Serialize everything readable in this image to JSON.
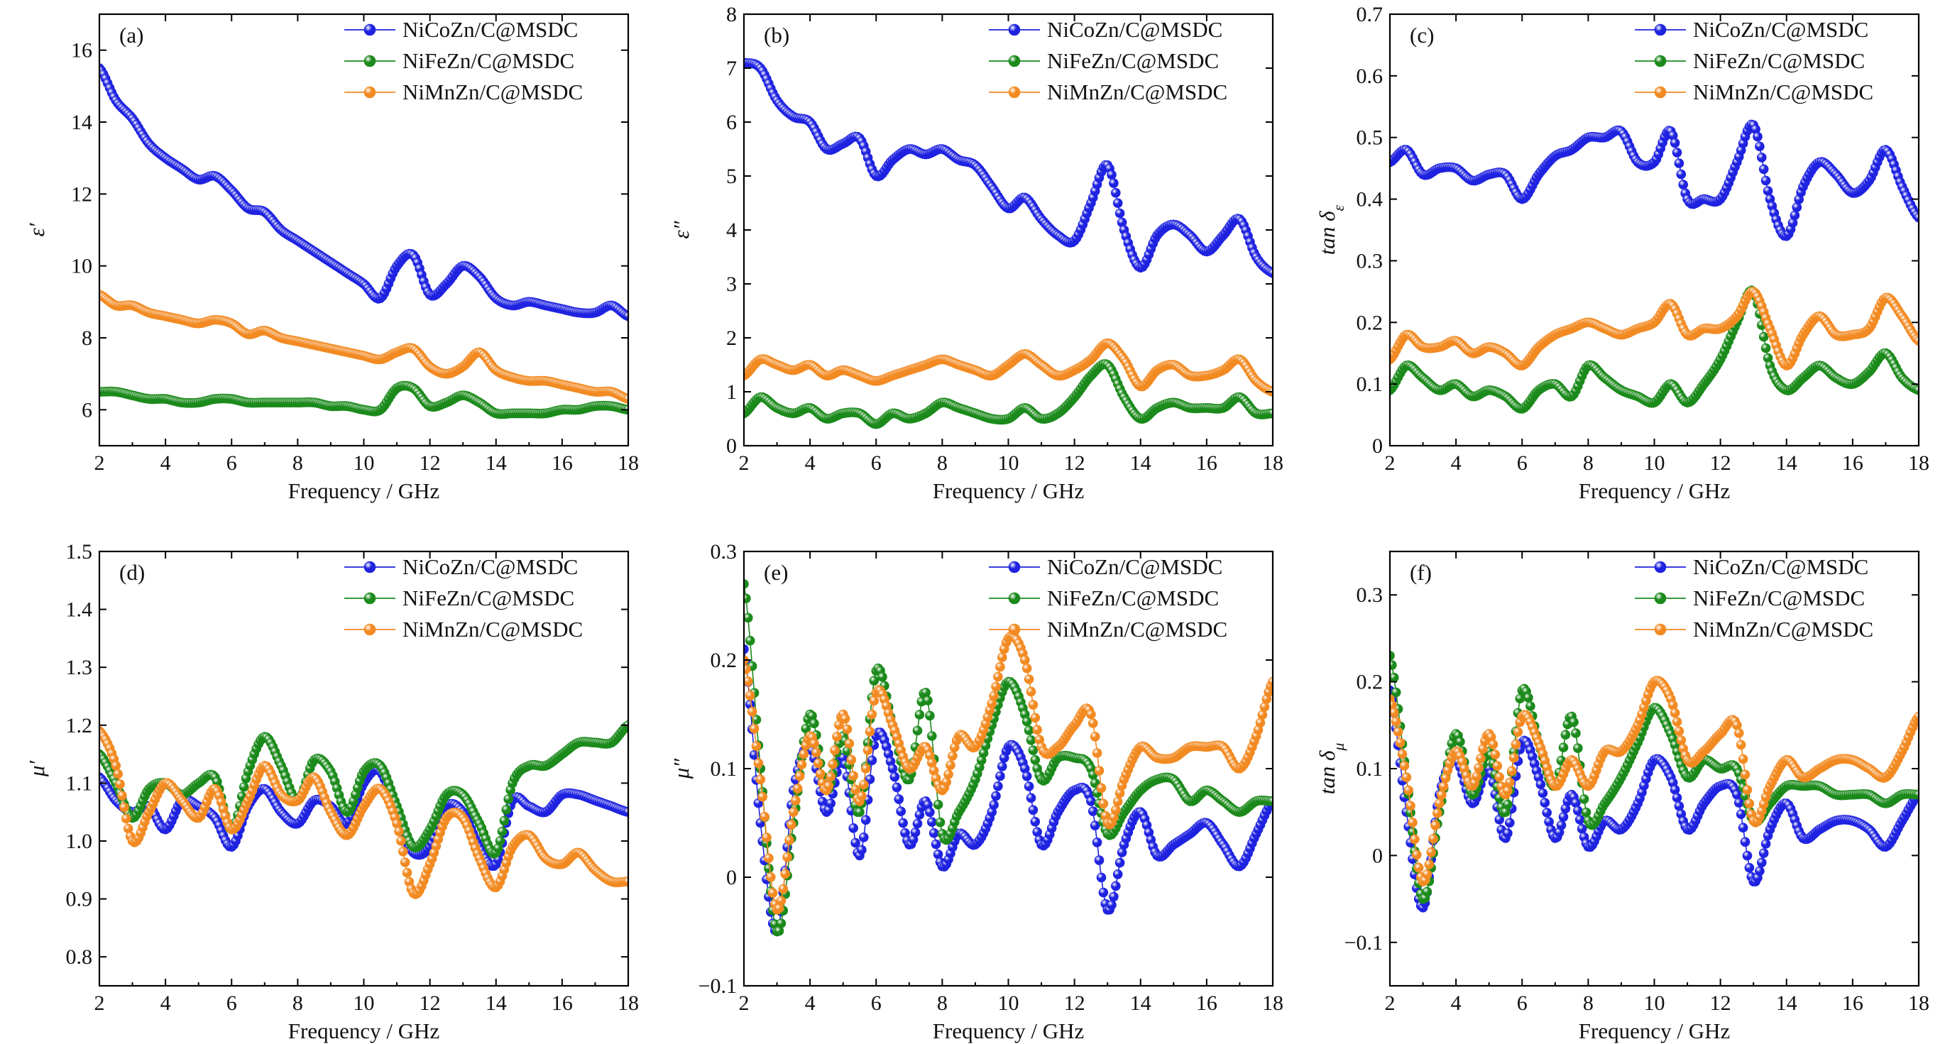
{
  "figure": {
    "series_names": [
      "NiCoZn/C@MSDC",
      "NiFeZn/C@MSDC",
      "NiMnZn/C@MSDC"
    ],
    "series_colors": [
      "#1f23e0",
      "#1b8a1b",
      "#f28a22"
    ],
    "marker_highlight": "#ffffff"
  },
  "chart_data": [
    {
      "id": "a",
      "type": "scatter",
      "label": "(a)",
      "xlabel": "Frequency / GHz",
      "ylabel": "ε′",
      "ylabel_sub": "",
      "xlim": [
        2,
        18
      ],
      "ylim": [
        5.0,
        17.0
      ],
      "xticks": [
        2,
        4,
        6,
        8,
        10,
        12,
        14,
        16,
        18
      ],
      "yticks": [
        6,
        8,
        10,
        12,
        14,
        16
      ],
      "yticklabels": [
        "6",
        "8",
        "10",
        "12",
        "14",
        "16"
      ],
      "legend": "top-right",
      "x": [
        2.0,
        2.5,
        3.0,
        3.5,
        4.0,
        4.5,
        5.0,
        5.5,
        6.0,
        6.5,
        7.0,
        7.5,
        8.0,
        8.5,
        9.0,
        9.5,
        10.0,
        10.5,
        11.0,
        11.5,
        12.0,
        12.5,
        13.0,
        13.5,
        14.0,
        14.5,
        15.0,
        15.5,
        16.0,
        16.5,
        17.0,
        17.5,
        18.0
      ],
      "series": [
        {
          "name": "NiCoZn/C@MSDC",
          "values": [
            15.5,
            14.6,
            14.1,
            13.4,
            13.0,
            12.7,
            12.4,
            12.5,
            12.1,
            11.6,
            11.5,
            11.0,
            10.7,
            10.4,
            10.1,
            9.8,
            9.5,
            9.1,
            10.0,
            10.3,
            9.2,
            9.5,
            10.0,
            9.7,
            9.1,
            8.9,
            9.0,
            8.9,
            8.8,
            8.7,
            8.7,
            8.9,
            8.6
          ]
        },
        {
          "name": "NiFeZn/C@MSDC",
          "values": [
            6.5,
            6.5,
            6.4,
            6.3,
            6.3,
            6.2,
            6.2,
            6.3,
            6.3,
            6.2,
            6.2,
            6.2,
            6.2,
            6.2,
            6.1,
            6.1,
            6.0,
            6.0,
            6.6,
            6.6,
            6.1,
            6.2,
            6.4,
            6.2,
            5.9,
            5.9,
            5.9,
            5.9,
            6.0,
            6.0,
            6.1,
            6.1,
            6.0
          ]
        },
        {
          "name": "NiMnZn/C@MSDC",
          "values": [
            9.2,
            8.9,
            8.9,
            8.7,
            8.6,
            8.5,
            8.4,
            8.5,
            8.4,
            8.1,
            8.2,
            8.0,
            7.9,
            7.8,
            7.7,
            7.6,
            7.5,
            7.4,
            7.6,
            7.7,
            7.2,
            7.0,
            7.2,
            7.6,
            7.1,
            6.9,
            6.8,
            6.8,
            6.7,
            6.6,
            6.5,
            6.5,
            6.3
          ]
        }
      ]
    },
    {
      "id": "b",
      "type": "scatter",
      "label": "(b)",
      "xlabel": "Frequency / GHz",
      "ylabel": "ε″",
      "ylabel_sub": "",
      "xlim": [
        2,
        18
      ],
      "ylim": [
        0,
        8
      ],
      "xticks": [
        2,
        4,
        6,
        8,
        10,
        12,
        14,
        16,
        18
      ],
      "yticks": [
        0,
        1,
        2,
        3,
        4,
        5,
        6,
        7,
        8
      ],
      "yticklabels": [
        "0",
        "1",
        "2",
        "3",
        "4",
        "5",
        "6",
        "7",
        "8"
      ],
      "legend": "top-right",
      "x": [
        2.0,
        2.5,
        3.0,
        3.5,
        4.0,
        4.5,
        5.0,
        5.5,
        6.0,
        6.5,
        7.0,
        7.5,
        8.0,
        8.5,
        9.0,
        9.5,
        10.0,
        10.5,
        11.0,
        11.5,
        12.0,
        12.5,
        13.0,
        13.5,
        14.0,
        14.5,
        15.0,
        15.5,
        16.0,
        16.5,
        17.0,
        17.5,
        18.0
      ],
      "series": [
        {
          "name": "NiCoZn/C@MSDC",
          "values": [
            7.1,
            7.0,
            6.4,
            6.1,
            6.0,
            5.5,
            5.6,
            5.7,
            5.0,
            5.3,
            5.5,
            5.4,
            5.5,
            5.3,
            5.2,
            4.8,
            4.4,
            4.6,
            4.2,
            3.9,
            3.8,
            4.5,
            5.2,
            4.0,
            3.3,
            3.9,
            4.1,
            3.9,
            3.6,
            3.9,
            4.2,
            3.5,
            3.2
          ]
        },
        {
          "name": "NiFeZn/C@MSDC",
          "values": [
            0.6,
            0.9,
            0.7,
            0.6,
            0.7,
            0.5,
            0.6,
            0.6,
            0.4,
            0.6,
            0.5,
            0.6,
            0.8,
            0.7,
            0.6,
            0.5,
            0.5,
            0.7,
            0.5,
            0.6,
            0.9,
            1.3,
            1.5,
            0.9,
            0.5,
            0.7,
            0.8,
            0.7,
            0.7,
            0.7,
            0.9,
            0.6,
            0.6
          ]
        },
        {
          "name": "NiMnZn/C@MSDC",
          "values": [
            1.3,
            1.6,
            1.5,
            1.4,
            1.5,
            1.3,
            1.4,
            1.3,
            1.2,
            1.3,
            1.4,
            1.5,
            1.6,
            1.5,
            1.4,
            1.3,
            1.5,
            1.7,
            1.5,
            1.3,
            1.4,
            1.6,
            1.9,
            1.6,
            1.1,
            1.4,
            1.5,
            1.3,
            1.3,
            1.4,
            1.6,
            1.2,
            1.0
          ]
        }
      ]
    },
    {
      "id": "c",
      "type": "scatter",
      "label": "(c)",
      "xlabel": "Frequency / GHz",
      "ylabel": "tan δ",
      "ylabel_sub": "ε",
      "xlim": [
        2,
        18
      ],
      "ylim": [
        0,
        0.7
      ],
      "xticks": [
        2,
        4,
        6,
        8,
        10,
        12,
        14,
        16,
        18
      ],
      "yticks": [
        0,
        0.1,
        0.2,
        0.3,
        0.4,
        0.5,
        0.6,
        0.7
      ],
      "yticklabels": [
        "0",
        "0.1",
        "0.2",
        "0.3",
        "0.4",
        "0.5",
        "0.6",
        "0.7"
      ],
      "legend": "top-right",
      "x": [
        2.0,
        2.5,
        3.0,
        3.5,
        4.0,
        4.5,
        5.0,
        5.5,
        6.0,
        6.5,
        7.0,
        7.5,
        8.0,
        8.5,
        9.0,
        9.5,
        10.0,
        10.5,
        11.0,
        11.5,
        12.0,
        12.5,
        13.0,
        13.5,
        14.0,
        14.5,
        15.0,
        15.5,
        16.0,
        16.5,
        17.0,
        17.5,
        18.0
      ],
      "series": [
        {
          "name": "NiCoZn/C@MSDC",
          "values": [
            0.46,
            0.48,
            0.44,
            0.45,
            0.45,
            0.43,
            0.44,
            0.44,
            0.4,
            0.44,
            0.47,
            0.48,
            0.5,
            0.5,
            0.51,
            0.46,
            0.46,
            0.51,
            0.4,
            0.4,
            0.4,
            0.46,
            0.52,
            0.4,
            0.34,
            0.42,
            0.46,
            0.44,
            0.41,
            0.43,
            0.48,
            0.42,
            0.37
          ]
        },
        {
          "name": "NiFeZn/C@MSDC",
          "values": [
            0.09,
            0.13,
            0.11,
            0.09,
            0.1,
            0.08,
            0.09,
            0.08,
            0.06,
            0.09,
            0.1,
            0.08,
            0.13,
            0.11,
            0.09,
            0.08,
            0.07,
            0.1,
            0.07,
            0.1,
            0.14,
            0.2,
            0.25,
            0.13,
            0.09,
            0.11,
            0.13,
            0.11,
            0.1,
            0.12,
            0.15,
            0.11,
            0.09
          ]
        },
        {
          "name": "NiMnZn/C@MSDC",
          "values": [
            0.14,
            0.18,
            0.16,
            0.16,
            0.17,
            0.15,
            0.16,
            0.15,
            0.13,
            0.16,
            0.18,
            0.19,
            0.2,
            0.19,
            0.18,
            0.19,
            0.2,
            0.23,
            0.18,
            0.19,
            0.19,
            0.21,
            0.25,
            0.19,
            0.13,
            0.18,
            0.21,
            0.18,
            0.18,
            0.19,
            0.24,
            0.21,
            0.17
          ]
        }
      ]
    },
    {
      "id": "d",
      "type": "line",
      "label": "(d)",
      "xlabel": "Frequency / GHz",
      "ylabel": "μ′",
      "ylabel_sub": "",
      "xlim": [
        2,
        18
      ],
      "ylim": [
        0.75,
        1.5
      ],
      "xticks": [
        2,
        4,
        6,
        8,
        10,
        12,
        14,
        16,
        18
      ],
      "yticks": [
        0.8,
        0.9,
        1.0,
        1.1,
        1.2,
        1.3,
        1.4,
        1.5
      ],
      "yticklabels": [
        "0.8",
        "0.9",
        "1.0",
        "1.1",
        "1.2",
        "1.3",
        "1.4",
        "1.5"
      ],
      "legend": "top-right",
      "x": [
        2.0,
        2.5,
        3.0,
        3.5,
        4.0,
        4.5,
        5.0,
        5.5,
        6.0,
        6.5,
        7.0,
        7.5,
        8.0,
        8.5,
        9.0,
        9.5,
        10.0,
        10.5,
        11.0,
        11.5,
        12.0,
        12.5,
        13.0,
        13.5,
        14.0,
        14.5,
        15.0,
        15.5,
        16.0,
        16.5,
        17.0,
        17.5,
        18.0
      ],
      "series": [
        {
          "name": "NiCoZn/C@MSDC",
          "values": [
            1.11,
            1.07,
            1.05,
            1.06,
            1.02,
            1.07,
            1.06,
            1.04,
            0.99,
            1.06,
            1.09,
            1.05,
            1.03,
            1.07,
            1.06,
            1.03,
            1.1,
            1.12,
            1.04,
            0.98,
            0.99,
            1.06,
            1.05,
            0.99,
            0.96,
            1.07,
            1.06,
            1.05,
            1.08,
            1.08,
            1.07,
            1.06,
            1.05
          ]
        },
        {
          "name": "NiFeZn/C@MSDC",
          "values": [
            1.15,
            1.1,
            1.04,
            1.09,
            1.1,
            1.08,
            1.1,
            1.11,
            1.02,
            1.12,
            1.18,
            1.13,
            1.07,
            1.14,
            1.12,
            1.05,
            1.12,
            1.13,
            1.06,
            0.99,
            1.02,
            1.08,
            1.08,
            1.03,
            0.98,
            1.1,
            1.13,
            1.13,
            1.15,
            1.17,
            1.17,
            1.17,
            1.2
          ]
        },
        {
          "name": "NiMnZn/C@MSDC",
          "values": [
            1.19,
            1.13,
            1.0,
            1.05,
            1.1,
            1.07,
            1.04,
            1.09,
            1.02,
            1.07,
            1.13,
            1.08,
            1.07,
            1.11,
            1.05,
            1.01,
            1.06,
            1.09,
            1.03,
            0.91,
            0.96,
            1.04,
            1.04,
            0.97,
            0.92,
            0.99,
            1.01,
            0.97,
            0.96,
            0.98,
            0.95,
            0.93,
            0.93
          ]
        }
      ]
    },
    {
      "id": "e",
      "type": "line",
      "label": "(e)",
      "xlabel": "Frequency / GHz",
      "ylabel": "μ″",
      "ylabel_sub": "",
      "xlim": [
        2,
        18
      ],
      "ylim": [
        -0.1,
        0.3
      ],
      "xticks": [
        2,
        4,
        6,
        8,
        10,
        12,
        14,
        16,
        18
      ],
      "yticks": [
        -0.1,
        0,
        0.1,
        0.2,
        0.3
      ],
      "yticklabels": [
        "−0.1",
        "0",
        "0.1",
        "0.2",
        "0.3"
      ],
      "legend": "top-right",
      "x": [
        2.0,
        2.5,
        3.0,
        3.5,
        4.0,
        4.5,
        5.0,
        5.5,
        6.0,
        6.5,
        7.0,
        7.5,
        8.0,
        8.5,
        9.0,
        9.5,
        10.0,
        10.5,
        11.0,
        11.5,
        12.0,
        12.5,
        13.0,
        13.5,
        14.0,
        14.5,
        15.0,
        15.5,
        16.0,
        16.5,
        17.0,
        17.5,
        18.0
      ],
      "series": [
        {
          "name": "NiCoZn/C@MSDC",
          "values": [
            0.21,
            0.05,
            -0.05,
            0.08,
            0.12,
            0.06,
            0.11,
            0.02,
            0.13,
            0.1,
            0.03,
            0.07,
            0.01,
            0.04,
            0.03,
            0.06,
            0.12,
            0.1,
            0.03,
            0.06,
            0.08,
            0.07,
            -0.03,
            0.03,
            0.06,
            0.02,
            0.03,
            0.04,
            0.05,
            0.03,
            0.01,
            0.04,
            0.07
          ]
        },
        {
          "name": "NiFeZn/C@MSDC",
          "values": [
            0.27,
            0.1,
            -0.05,
            0.05,
            0.15,
            0.08,
            0.13,
            0.06,
            0.19,
            0.14,
            0.09,
            0.17,
            0.04,
            0.06,
            0.09,
            0.14,
            0.18,
            0.15,
            0.09,
            0.11,
            0.11,
            0.1,
            0.04,
            0.06,
            0.08,
            0.09,
            0.09,
            0.07,
            0.08,
            0.07,
            0.06,
            0.07,
            0.07
          ]
        },
        {
          "name": "NiMnZn/C@MSDC",
          "values": [
            0.2,
            0.09,
            -0.03,
            0.06,
            0.13,
            0.08,
            0.15,
            0.07,
            0.17,
            0.14,
            0.1,
            0.12,
            0.08,
            0.13,
            0.12,
            0.16,
            0.22,
            0.2,
            0.12,
            0.12,
            0.14,
            0.15,
            0.05,
            0.09,
            0.12,
            0.11,
            0.11,
            0.12,
            0.12,
            0.12,
            0.1,
            0.13,
            0.18
          ]
        }
      ]
    },
    {
      "id": "f",
      "type": "line",
      "label": "(f)",
      "xlabel": "Frequency / GHz",
      "ylabel": "tan δ",
      "ylabel_sub": "μ",
      "xlim": [
        2,
        18
      ],
      "ylim": [
        -0.15,
        0.35
      ],
      "xticks": [
        2,
        4,
        6,
        8,
        10,
        12,
        14,
        16,
        18
      ],
      "yticks": [
        -0.1,
        0,
        0.1,
        0.2,
        0.3
      ],
      "yticklabels": [
        "−0.1",
        "0",
        "0.1",
        "0.2",
        "0.3"
      ],
      "legend": "top-right",
      "x": [
        2.0,
        2.5,
        3.0,
        3.5,
        4.0,
        4.5,
        5.0,
        5.5,
        6.0,
        6.5,
        7.0,
        7.5,
        8.0,
        8.5,
        9.0,
        9.5,
        10.0,
        10.5,
        11.0,
        11.5,
        12.0,
        12.5,
        13.0,
        13.5,
        14.0,
        14.5,
        15.0,
        15.5,
        16.0,
        16.5,
        17.0,
        17.5,
        18.0
      ],
      "series": [
        {
          "name": "NiCoZn/C@MSDC",
          "values": [
            0.19,
            0.05,
            -0.06,
            0.07,
            0.11,
            0.06,
            0.1,
            0.02,
            0.13,
            0.09,
            0.02,
            0.07,
            0.01,
            0.04,
            0.03,
            0.06,
            0.11,
            0.09,
            0.03,
            0.06,
            0.08,
            0.07,
            -0.03,
            0.03,
            0.06,
            0.02,
            0.03,
            0.04,
            0.04,
            0.03,
            0.01,
            0.04,
            0.07
          ]
        },
        {
          "name": "NiFeZn/C@MSDC",
          "values": [
            0.23,
            0.09,
            -0.05,
            0.05,
            0.14,
            0.07,
            0.12,
            0.05,
            0.19,
            0.13,
            0.08,
            0.16,
            0.04,
            0.06,
            0.09,
            0.13,
            0.17,
            0.14,
            0.09,
            0.11,
            0.1,
            0.1,
            0.04,
            0.06,
            0.08,
            0.08,
            0.08,
            0.07,
            0.07,
            0.07,
            0.06,
            0.07,
            0.07
          ]
        },
        {
          "name": "NiMnZn/C@MSDC",
          "values": [
            0.18,
            0.09,
            -0.03,
            0.06,
            0.12,
            0.08,
            0.14,
            0.07,
            0.16,
            0.13,
            0.08,
            0.11,
            0.08,
            0.12,
            0.12,
            0.15,
            0.2,
            0.18,
            0.11,
            0.12,
            0.14,
            0.15,
            0.04,
            0.08,
            0.11,
            0.09,
            0.1,
            0.11,
            0.11,
            0.1,
            0.09,
            0.12,
            0.16
          ]
        }
      ]
    }
  ]
}
